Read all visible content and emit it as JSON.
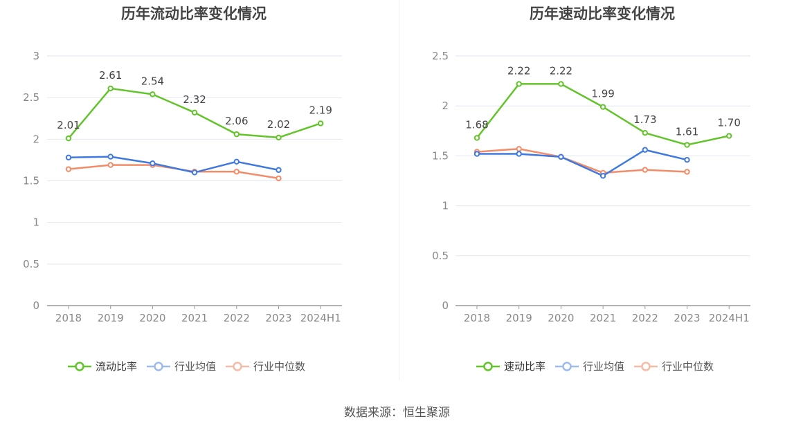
{
  "source": "数据来源：恒生聚源",
  "colors": {
    "primary": "#62c42a",
    "average": "#3f79e0",
    "median": "#f28b68"
  },
  "chart_data": [
    {
      "type": "line",
      "title": "历年流动比率变化情况",
      "x": [
        "2018",
        "2019",
        "2020",
        "2021",
        "2022",
        "2023",
        "2024H1"
      ],
      "ylim": [
        0,
        3
      ],
      "yticks": [
        "0",
        "0.5",
        "1",
        "1.5",
        "2",
        "2.5",
        "3"
      ],
      "ytick_values": [
        0,
        0.5,
        1,
        1.5,
        2,
        2.5,
        3
      ],
      "grid": true,
      "legend_position": "bottom",
      "series": [
        {
          "name": "流动比率",
          "color": "#62c42a",
          "labels": true,
          "values": [
            2.01,
            2.61,
            2.54,
            2.32,
            2.06,
            2.02,
            2.19
          ],
          "value_labels": [
            "2.01",
            "2.61",
            "2.54",
            "2.32",
            "2.06",
            "2.02",
            "2.19"
          ]
        },
        {
          "name": "行业均值",
          "color": "#3f79e0",
          "labels": false,
          "values": [
            1.78,
            1.79,
            1.71,
            1.6,
            1.73,
            1.63,
            null
          ]
        },
        {
          "name": "行业中位数",
          "color": "#f28b68",
          "labels": false,
          "values": [
            1.64,
            1.69,
            1.69,
            1.61,
            1.61,
            1.53,
            null
          ]
        }
      ]
    },
    {
      "type": "line",
      "title": "历年速动比率变化情况",
      "x": [
        "2018",
        "2019",
        "2020",
        "2021",
        "2022",
        "2023",
        "2024H1"
      ],
      "ylim": [
        0,
        2.5
      ],
      "yticks": [
        "0",
        "0.5",
        "1",
        "1.5",
        "2",
        "2.5"
      ],
      "ytick_values": [
        0,
        0.5,
        1,
        1.5,
        2,
        2.5
      ],
      "grid": true,
      "legend_position": "bottom",
      "series": [
        {
          "name": "速动比率",
          "color": "#62c42a",
          "labels": true,
          "values": [
            1.68,
            2.22,
            2.22,
            1.99,
            1.73,
            1.61,
            1.7
          ],
          "value_labels": [
            "1.68",
            "2.22",
            "2.22",
            "1.99",
            "1.73",
            "1.61",
            "1.70"
          ]
        },
        {
          "name": "行业均值",
          "color": "#3f79e0",
          "labels": false,
          "values": [
            1.52,
            1.52,
            1.49,
            1.3,
            1.56,
            1.46,
            null
          ]
        },
        {
          "name": "行业中位数",
          "color": "#f28b68",
          "labels": false,
          "values": [
            1.54,
            1.57,
            1.49,
            1.33,
            1.36,
            1.34,
            null
          ]
        }
      ]
    }
  ]
}
